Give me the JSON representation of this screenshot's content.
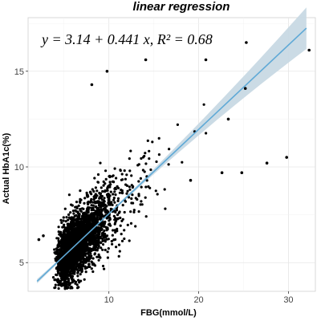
{
  "chart_data": {
    "type": "scatter",
    "title": "linear regression",
    "xlabel": "FBG(mmol/L)",
    "ylabel": "Actual HbA1c(%)",
    "xlim": [
      1,
      33
    ],
    "ylim": [
      3.5,
      17.8
    ],
    "xticks": [
      10,
      20,
      30
    ],
    "yticks": [
      5,
      10,
      15
    ],
    "grid": true,
    "annotation": "y = 3.14 + 0.441 x, R² = 0.68",
    "regression": {
      "intercept": 3.14,
      "slope": 0.441,
      "r_squared": 0.68,
      "x_range": [
        2,
        32
      ],
      "band": "light blue confidence band"
    },
    "points_visible_outliers": [
      {
        "x": 32.3,
        "y": 16.1
      },
      {
        "x": 25.3,
        "y": 16.5
      },
      {
        "x": 20.8,
        "y": 15.6
      },
      {
        "x": 14.1,
        "y": 15.6
      },
      {
        "x": 9.8,
        "y": 15.0
      },
      {
        "x": 8.1,
        "y": 14.3
      },
      {
        "x": 25.2,
        "y": 14.1
      },
      {
        "x": 23.3,
        "y": 12.5
      },
      {
        "x": 29.8,
        "y": 10.5
      },
      {
        "x": 27.6,
        "y": 10.2
      },
      {
        "x": 24.8,
        "y": 9.7
      },
      {
        "x": 22.6,
        "y": 9.7
      },
      {
        "x": 19.1,
        "y": 9.3
      },
      {
        "x": 2.7,
        "y": 6.4
      },
      {
        "x": 2.2,
        "y": 6.2
      }
    ],
    "point_cloud": {
      "n": 2800,
      "x_distribution": "right-skewed, mode about 6 mmol/L",
      "noise_sd": 0.75
    },
    "colors": {
      "points": "#000000",
      "line": "#5fa9d6",
      "band": "#c8d9e4",
      "grid": "#e6e6e6"
    }
  }
}
